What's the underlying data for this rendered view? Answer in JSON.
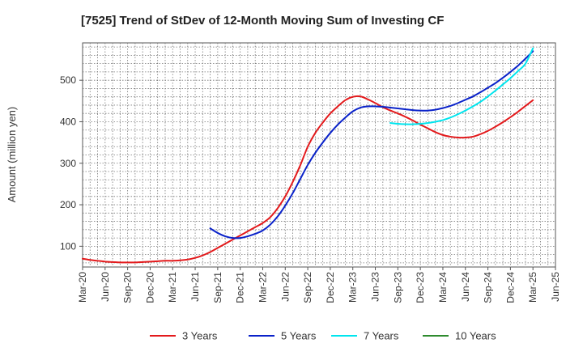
{
  "chart_data": {
    "type": "line",
    "title": "[7525]  Trend of StDev of 12-Month Moving Sum of Investing CF",
    "ylabel": "Amount (million yen)",
    "ylim": [
      50,
      590
    ],
    "yticks": [
      100,
      200,
      300,
      400,
      500
    ],
    "xticks": [
      "Mar-20",
      "Jun-20",
      "Sep-20",
      "Dec-20",
      "Mar-21",
      "Jun-21",
      "Sep-21",
      "Dec-21",
      "Mar-22",
      "Jun-22",
      "Sep-22",
      "Dec-22",
      "Mar-23",
      "Jun-23",
      "Sep-23",
      "Dec-23",
      "Mar-24",
      "Jun-24",
      "Sep-24",
      "Dec-24",
      "Mar-25",
      "Jun-25"
    ],
    "grid": true,
    "legend": "bottom",
    "series": [
      {
        "name": "3 Years",
        "color": "#e31a1c",
        "x": [
          "Mar-20",
          "Apr-20",
          "May-20",
          "Jun-20",
          "Jul-20",
          "Aug-20",
          "Sep-20",
          "Oct-20",
          "Nov-20",
          "Dec-20",
          "Jan-21",
          "Feb-21",
          "Mar-21",
          "Apr-21",
          "May-21",
          "Jun-21",
          "Jul-21",
          "Aug-21",
          "Sep-21",
          "Oct-21",
          "Nov-21",
          "Dec-21",
          "Jan-22",
          "Feb-22",
          "Mar-22",
          "Apr-22",
          "May-22",
          "Jun-22",
          "Jul-22",
          "Aug-22",
          "Sep-22",
          "Oct-22",
          "Nov-22",
          "Dec-22",
          "Jan-23",
          "Feb-23",
          "Mar-23",
          "Apr-23",
          "May-23",
          "Jun-23",
          "Jul-23",
          "Aug-23",
          "Sep-23",
          "Oct-23",
          "Nov-23",
          "Dec-23",
          "Jan-24",
          "Feb-24",
          "Mar-24",
          "Apr-24",
          "May-24",
          "Jun-24",
          "Jul-24",
          "Aug-24",
          "Sep-24",
          "Oct-24",
          "Nov-24",
          "Dec-24",
          "Jan-25",
          "Feb-25",
          "Mar-25"
        ],
        "values": [
          70,
          67,
          65,
          63,
          62,
          61,
          61,
          61,
          62,
          63,
          64,
          65,
          65,
          66,
          68,
          72,
          78,
          86,
          96,
          106,
          116,
          126,
          136,
          146,
          156,
          170,
          192,
          220,
          255,
          295,
          340,
          373,
          398,
          420,
          437,
          452,
          460,
          461,
          454,
          445,
          435,
          427,
          420,
          412,
          403,
          393,
          384,
          375,
          368,
          364,
          362,
          362,
          364,
          370,
          378,
          388,
          399,
          411,
          424,
          438,
          452
        ]
      },
      {
        "name": "5 Years",
        "color": "#0a22c9",
        "x": [
          "Aug-21",
          "Sep-21",
          "Oct-21",
          "Nov-21",
          "Dec-21",
          "Jan-22",
          "Feb-22",
          "Mar-22",
          "Apr-22",
          "May-22",
          "Jun-22",
          "Jul-22",
          "Aug-22",
          "Sep-22",
          "Oct-22",
          "Nov-22",
          "Dec-22",
          "Jan-23",
          "Feb-23",
          "Mar-23",
          "Apr-23",
          "May-23",
          "Jun-23",
          "Jul-23",
          "Aug-23",
          "Sep-23",
          "Oct-23",
          "Nov-23",
          "Dec-23",
          "Jan-24",
          "Feb-24",
          "Mar-24",
          "Apr-24",
          "May-24",
          "Jun-24",
          "Jul-24",
          "Aug-24",
          "Sep-24",
          "Oct-24",
          "Nov-24",
          "Dec-24",
          "Jan-25",
          "Feb-25",
          "Mar-25"
        ],
        "values": [
          143,
          132,
          124,
          120,
          120,
          124,
          130,
          138,
          152,
          172,
          198,
          228,
          262,
          296,
          325,
          350,
          373,
          393,
          410,
          425,
          434,
          437,
          437,
          436,
          434,
          432,
          430,
          428,
          427,
          427,
          429,
          433,
          438,
          445,
          453,
          461,
          471,
          482,
          493,
          506,
          520,
          535,
          552,
          570
        ]
      },
      {
        "name": "7 Years",
        "color": "#00e5ee",
        "x": [
          "Aug-23",
          "Sep-23",
          "Oct-23",
          "Nov-23",
          "Dec-23",
          "Jan-24",
          "Feb-24",
          "Mar-24",
          "Apr-24",
          "May-24",
          "Jun-24",
          "Jul-24",
          "Aug-24",
          "Sep-24",
          "Oct-24",
          "Nov-24",
          "Dec-24",
          "Jan-25",
          "Feb-25",
          "Mar-25"
        ],
        "values": [
          397,
          395,
          394,
          394,
          395,
          397,
          400,
          404,
          410,
          418,
          427,
          437,
          448,
          461,
          475,
          490,
          505,
          522,
          540,
          577
        ]
      },
      {
        "name": "10 Years",
        "color": "#2e8b2e",
        "x": [],
        "values": []
      }
    ]
  }
}
